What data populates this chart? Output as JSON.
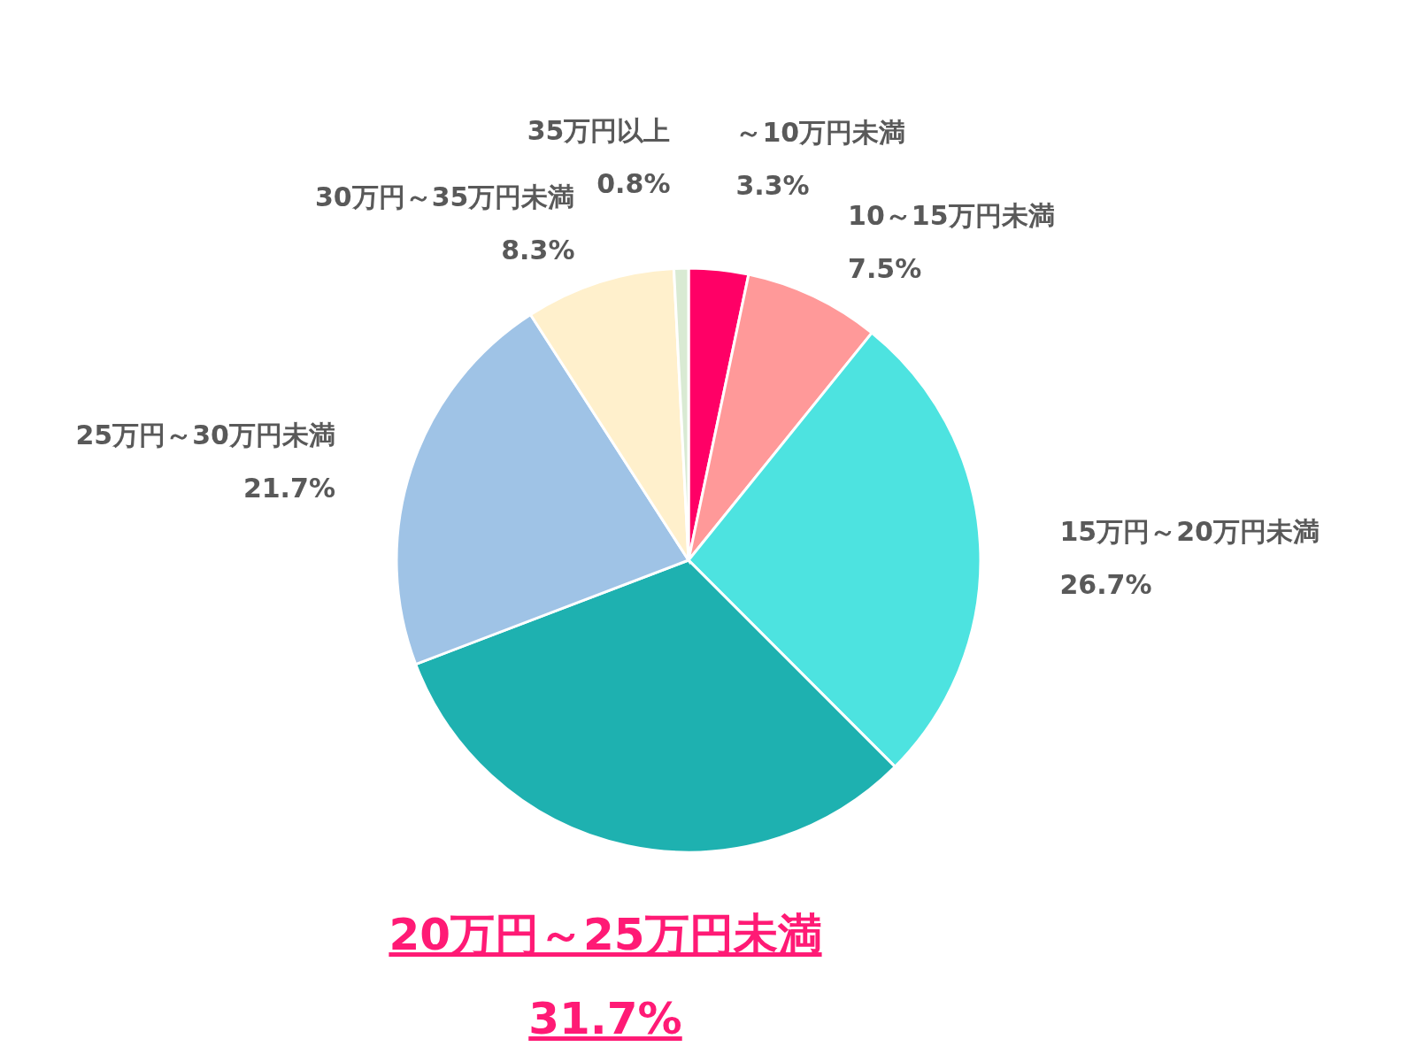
{
  "chart_data": {
    "type": "pie",
    "categories": [
      "～10万円未満",
      "10～15万円未満",
      "15万円～20万円未満",
      "20万円～25万円未満",
      "25万円～30万円未満",
      "30万円～35万円未満",
      "35万円以上"
    ],
    "values": [
      3.3,
      7.5,
      26.7,
      31.7,
      21.7,
      8.3,
      0.8
    ],
    "colors": [
      "#ff0066",
      "#ff9999",
      "#4de3e0",
      "#1eb1b0",
      "#9fc3e6",
      "#fff0cc",
      "#d9ead3"
    ],
    "value_labels": [
      "3.3%",
      "7.5%",
      "26.7%",
      "31.7%",
      "21.7%",
      "8.3%",
      "0.8%"
    ]
  }
}
